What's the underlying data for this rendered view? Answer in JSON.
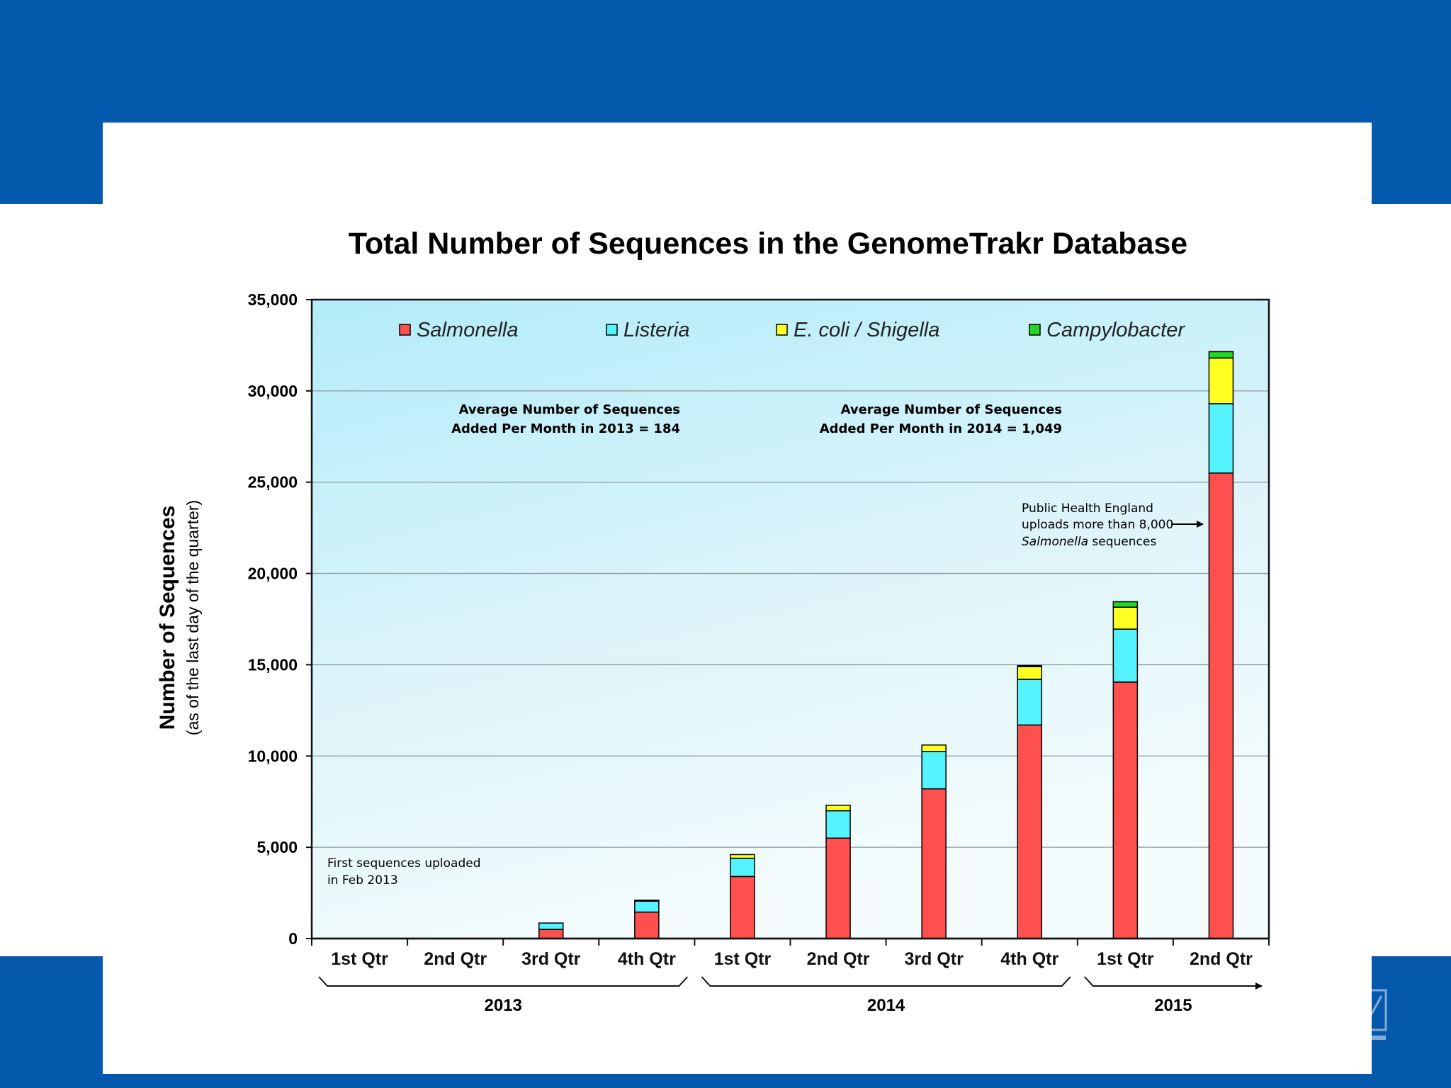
{
  "colors": {
    "frame": "#0559ad",
    "salmonella": "#ff5050",
    "listeria": "#55f3ff",
    "ecoli": "#ffff22",
    "campylobacter": "#22d622"
  },
  "chart_data": {
    "type": "bar",
    "stacked": true,
    "title": "Total Number of Sequences in the GenomeTrakr Database",
    "ylabel": "Number of Sequences",
    "ylabel_sub": "(as of the last day of the quarter)",
    "ylim": [
      0,
      35000
    ],
    "yticks": [
      0,
      5000,
      10000,
      15000,
      20000,
      25000,
      30000,
      35000
    ],
    "ytick_labels": [
      "0",
      "5,000",
      "10,000",
      "15,000",
      "20,000",
      "25,000",
      "30,000",
      "35,000"
    ],
    "grid": true,
    "legend_position": "top",
    "categories": [
      "1st Qtr",
      "2nd Qtr",
      "3rd Qtr",
      "4th Qtr",
      "1st Qtr",
      "2nd Qtr",
      "3rd Qtr",
      "4th Qtr",
      "1st Qtr",
      "2nd Qtr"
    ],
    "year_groups": [
      {
        "label": "2013",
        "start": 0,
        "end": 3
      },
      {
        "label": "2014",
        "start": 4,
        "end": 7
      },
      {
        "label": "2015",
        "start": 8,
        "end": 9
      }
    ],
    "series": [
      {
        "name": "Salmonella",
        "color": "#ff5050",
        "values": [
          0,
          0,
          500,
          1450,
          3400,
          5500,
          8200,
          11700,
          14050,
          25500
        ]
      },
      {
        "name": "Listeria",
        "color": "#55f3ff",
        "values": [
          0,
          0,
          350,
          600,
          1000,
          1500,
          2050,
          2500,
          2900,
          3800
        ]
      },
      {
        "name": "E. coli / Shigella",
        "color": "#ffff22",
        "values": [
          0,
          0,
          0,
          50,
          200,
          300,
          350,
          700,
          1200,
          2500
        ]
      },
      {
        "name": "Campylobacter",
        "color": "#22d622",
        "values": [
          0,
          0,
          0,
          0,
          0,
          0,
          0,
          50,
          300,
          350
        ]
      }
    ],
    "annotations": {
      "first_upload": [
        "First sequences uploaded",
        "in Feb 2013"
      ],
      "avg_2013": [
        "Average Number of Sequences",
        "Added Per Month in 2013 = 184"
      ],
      "avg_2014": [
        "Average Number of Sequences",
        "Added Per Month in 2014 = 1,049"
      ],
      "phe_line1": "Public Health England",
      "phe_line2": "uploads more than 8,000",
      "phe_line3_italic": "Salmonella",
      "phe_line3_rest": " sequences"
    }
  }
}
